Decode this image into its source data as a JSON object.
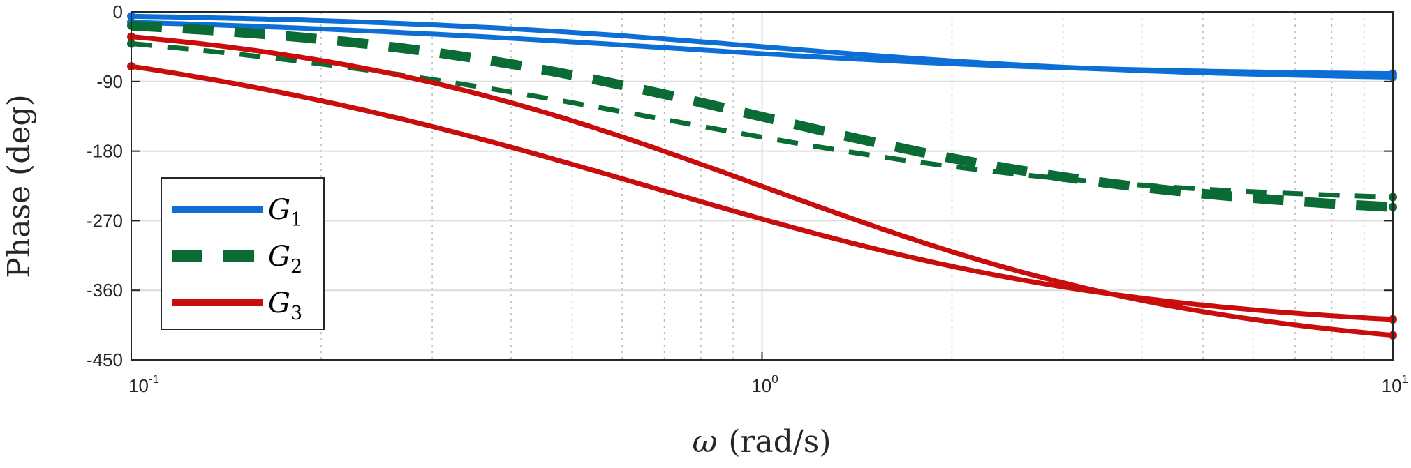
{
  "chart_data": {
    "type": "line",
    "title": "",
    "xlabel_symbol": "ω",
    "xlabel_units": "(rad/s)",
    "ylabel": "Phase (deg)",
    "xscale": "log",
    "xlim": [
      0.1,
      10
    ],
    "ylim": [
      -450,
      0
    ],
    "xticks": [
      {
        "value": 0.1,
        "base": "10",
        "exp": "-1"
      },
      {
        "value": 1,
        "base": "10",
        "exp": "0"
      },
      {
        "value": 10,
        "base": "10",
        "exp": "1"
      }
    ],
    "yticks": [
      {
        "value": 0,
        "label": "0"
      },
      {
        "value": -90,
        "label": "-90"
      },
      {
        "value": -180,
        "label": "-180"
      },
      {
        "value": -270,
        "label": "-270"
      },
      {
        "value": -360,
        "label": "-360"
      },
      {
        "value": -450,
        "label": "-450"
      }
    ],
    "grid": true,
    "legend_position": "left",
    "series": [
      {
        "name": "G",
        "sub": "1",
        "color": "#0d6fd6",
        "style": "solid",
        "kind": "lag",
        "poles": [
          1
        ],
        "sign": 1
      },
      {
        "name": "G",
        "sub": "1",
        "color": "#0d6fd6",
        "style": "solid",
        "kind": "sqrt",
        "poles": [
          1
        ],
        "sign": 1
      },
      {
        "name": "G",
        "sub": "2",
        "color": "#0b6b35",
        "style": "dashed-thick",
        "kind": "lag",
        "poles": [
          0.7,
          1,
          1.4
        ],
        "sign": 1
      },
      {
        "name": "G",
        "sub": "2",
        "color": "#0b6b35",
        "style": "dashed-thin",
        "kind": "sqrt",
        "poles": [
          0.7,
          1,
          1.4
        ],
        "sign": 1
      },
      {
        "name": "G",
        "sub": "3",
        "color": "#c90d0d",
        "style": "solid",
        "kind": "lag",
        "poles": [
          0.5,
          0.7,
          1,
          1.4,
          2
        ],
        "sign": 1
      },
      {
        "name": "G",
        "sub": "3",
        "color": "#c90d0d",
        "style": "solid",
        "kind": "sqrt",
        "poles": [
          0.5,
          0.7,
          1,
          1.4,
          2
        ],
        "sign": 1
      }
    ],
    "legend": [
      {
        "name": "G",
        "sub": "1",
        "color": "#0d6fd6",
        "style": "solid"
      },
      {
        "name": "G",
        "sub": "2",
        "color": "#0b6b35",
        "style": "dashed-thick"
      },
      {
        "name": "G",
        "sub": "3",
        "color": "#c90d0d",
        "style": "solid"
      }
    ]
  }
}
